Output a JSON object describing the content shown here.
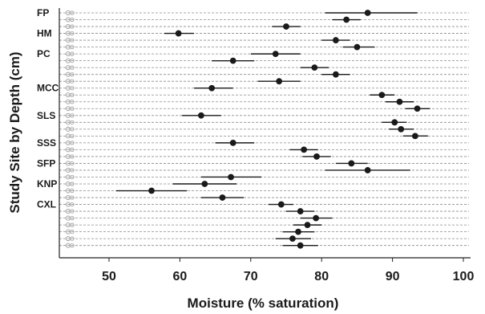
{
  "chart_data": {
    "type": "scatter",
    "title": "",
    "xlabel": "Moisture (% saturation)",
    "ylabel": "Study Site by Depth (cm)",
    "xlim": [
      42,
      100
    ],
    "x_ticks": [
      50,
      60,
      70,
      80,
      90,
      100
    ],
    "grid": "horizontal dashed line per row",
    "error_bars": "horizontal",
    "marker_color": "#1a1a1a",
    "site_labels": [
      "FP",
      "HM",
      "PC",
      "MCC",
      "SLS",
      "SSS",
      "SFP",
      "KNP",
      "CXL"
    ],
    "rows": [
      {
        "site": "FP",
        "x": 86.5,
        "low": 80.5,
        "high": 93.5
      },
      {
        "site": "FP",
        "x": 83.5,
        "low": 81.5,
        "high": 85.5
      },
      {
        "site": "FP",
        "x": 75.0,
        "low": 73.0,
        "high": 77.0
      },
      {
        "site": "HM",
        "x": 59.8,
        "low": 57.8,
        "high": 62.0
      },
      {
        "site": "HM",
        "x": 82.0,
        "low": 80.0,
        "high": 84.0
      },
      {
        "site": "HM",
        "x": 85.0,
        "low": 83.0,
        "high": 87.5
      },
      {
        "site": "PC",
        "x": 73.5,
        "low": 70.0,
        "high": 77.0
      },
      {
        "site": "PC",
        "x": 67.5,
        "low": 64.5,
        "high": 70.5
      },
      {
        "site": "PC",
        "x": 79.0,
        "low": 77.0,
        "high": 81.0
      },
      {
        "site": "PC",
        "x": 82.0,
        "low": 80.0,
        "high": 84.0
      },
      {
        "site": "PC",
        "x": 74.0,
        "low": 71.0,
        "high": 77.0
      },
      {
        "site": "MCC",
        "x": 64.5,
        "low": 62.0,
        "high": 67.5
      },
      {
        "site": "MCC",
        "x": 88.5,
        "low": 86.8,
        "high": 90.3
      },
      {
        "site": "MCC",
        "x": 91.0,
        "low": 89.0,
        "high": 93.0
      },
      {
        "site": "MCC",
        "x": 93.5,
        "low": 91.8,
        "high": 95.3
      },
      {
        "site": "SLS",
        "x": 63.0,
        "low": 60.3,
        "high": 65.8
      },
      {
        "site": "SLS",
        "x": 90.3,
        "low": 88.5,
        "high": 92.0
      },
      {
        "site": "SLS",
        "x": 91.2,
        "low": 89.5,
        "high": 93.0
      },
      {
        "site": "SLS",
        "x": 93.2,
        "low": 91.5,
        "high": 95.0
      },
      {
        "site": "SSS",
        "x": 67.5,
        "low": 65.0,
        "high": 70.5
      },
      {
        "site": "SSS",
        "x": 77.5,
        "low": 75.5,
        "high": 79.5
      },
      {
        "site": "SSS",
        "x": 79.3,
        "low": 77.3,
        "high": 81.3
      },
      {
        "site": "SFP",
        "x": 84.2,
        "low": 82.0,
        "high": 86.5
      },
      {
        "site": "SFP",
        "x": 86.5,
        "low": 80.5,
        "high": 92.5
      },
      {
        "site": "SFP",
        "x": 67.2,
        "low": 63.0,
        "high": 71.5
      },
      {
        "site": "KNP",
        "x": 63.5,
        "low": 59.0,
        "high": 68.0
      },
      {
        "site": "KNP",
        "x": 56.0,
        "low": 51.0,
        "high": 61.0
      },
      {
        "site": "KNP",
        "x": 66.0,
        "low": 63.0,
        "high": 69.0
      },
      {
        "site": "CXL",
        "x": 74.3,
        "low": 72.5,
        "high": 76.0
      },
      {
        "site": "CXL",
        "x": 77.0,
        "low": 75.0,
        "high": 79.0
      },
      {
        "site": "CXL",
        "x": 79.2,
        "low": 77.0,
        "high": 81.5
      },
      {
        "site": "CXL",
        "x": 78.0,
        "low": 76.0,
        "high": 80.0
      },
      {
        "site": "CXL",
        "x": 76.7,
        "low": 74.5,
        "high": 79.0
      },
      {
        "site": "CXL",
        "x": 75.9,
        "low": 73.5,
        "high": 78.5
      },
      {
        "site": "CXL",
        "x": 77.0,
        "low": 74.5,
        "high": 79.5
      }
    ]
  }
}
